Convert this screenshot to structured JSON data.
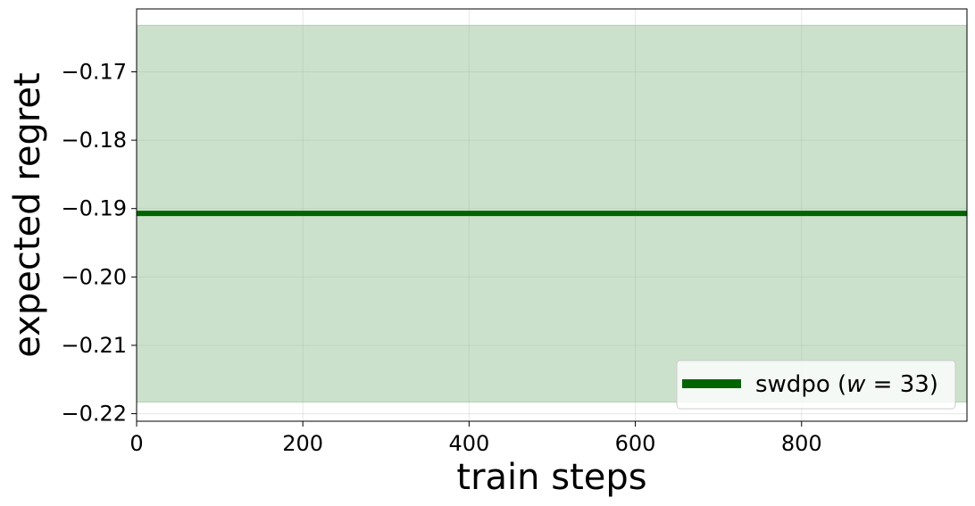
{
  "chart_data": {
    "type": "line",
    "title": "",
    "xlabel": "train steps",
    "ylabel": "expected regret",
    "xlim": [
      0,
      999
    ],
    "ylim": [
      -0.2211,
      -0.1608
    ],
    "xticks": [
      0,
      200,
      400,
      600,
      800
    ],
    "xtick_labels": [
      "0",
      "200",
      "400",
      "600",
      "800"
    ],
    "yticks": [
      -0.17,
      -0.18,
      -0.19,
      -0.2,
      -0.21,
      -0.22
    ],
    "ytick_labels": [
      "−0.17",
      "−0.18",
      "−0.19",
      "−0.20",
      "−0.21",
      "−0.22"
    ],
    "grid": true,
    "legend_position": "lower right",
    "series": [
      {
        "name": "swdpo (w = 33)",
        "legend_label_prefix": "swdpo (",
        "legend_label_var": "w",
        "legend_label_suffix": " = 33)",
        "color": "#006400",
        "band_color": "#8fbc8f",
        "x": [
          0,
          999
        ],
        "y": [
          -0.1907,
          -0.1907
        ],
        "band_upper": [
          -0.1632,
          -0.1632
        ],
        "band_lower": [
          -0.2183,
          -0.2183
        ]
      }
    ]
  }
}
